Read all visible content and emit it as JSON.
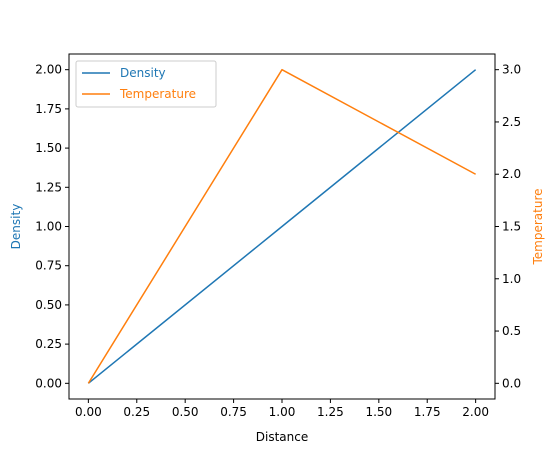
{
  "chart_data": {
    "type": "line",
    "x": [
      0,
      1,
      2
    ],
    "xlabel": "Distance",
    "xlim": [
      -0.1,
      2.1
    ],
    "xticks": [
      0,
      0.25,
      0.5,
      0.75,
      1,
      1.25,
      1.5,
      1.75,
      2
    ],
    "xtick_labels": [
      "0.00",
      "0.25",
      "0.50",
      "0.75",
      "1.00",
      "1.25",
      "1.50",
      "1.75",
      "2.00"
    ],
    "grid": false,
    "legend_position": "top-left",
    "series": [
      {
        "name": "Density",
        "axis": "left",
        "color": "#1f77b4",
        "values": [
          0,
          1,
          2
        ]
      },
      {
        "name": "Temperature",
        "axis": "right",
        "color": "#ff7f0e",
        "values": [
          0,
          3,
          2
        ]
      }
    ],
    "y_left": {
      "label": "Density",
      "color": "#1f77b4",
      "ylim": [
        -0.1,
        2.1
      ],
      "ticks": [
        0,
        0.25,
        0.5,
        0.75,
        1,
        1.25,
        1.5,
        1.75,
        2
      ],
      "tick_labels": [
        "0.00",
        "0.25",
        "0.50",
        "0.75",
        "1.00",
        "1.25",
        "1.50",
        "1.75",
        "2.00"
      ]
    },
    "y_right": {
      "label": "Temperature",
      "color": "#ff7f0e",
      "ylim": [
        -0.15,
        3.15
      ],
      "ticks": [
        0,
        0.5,
        1,
        1.5,
        2,
        2.5,
        3
      ],
      "tick_labels": [
        "0.0",
        "0.5",
        "1.0",
        "1.5",
        "2.0",
        "2.5",
        "3.0"
      ]
    }
  }
}
